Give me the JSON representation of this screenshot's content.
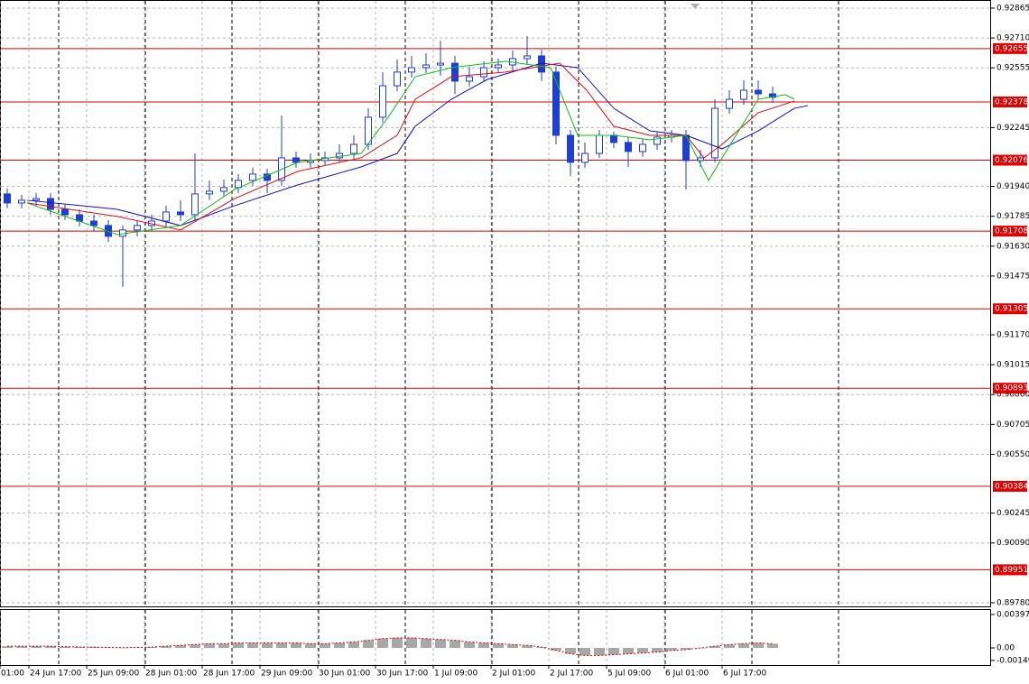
{
  "chart_data": {
    "type": "candlestick",
    "xlim": [
      0,
      274.5
    ],
    "xticks": [
      {
        "value": 0,
        "label": "01:00"
      },
      {
        "value": 8,
        "label": "24 Jun 17:00"
      },
      {
        "value": 24,
        "label": "25 Jun 09:00"
      },
      {
        "value": 40,
        "label": "28 Jun 01:00"
      },
      {
        "value": 56,
        "label": "28 Jun 17:00"
      },
      {
        "value": 72,
        "label": "29 Jun 09:00"
      },
      {
        "value": 88,
        "label": "30 Jun 01:00"
      },
      {
        "value": 104,
        "label": "30 Jun 17:00"
      },
      {
        "value": 120,
        "label": "1 Jul 09:00"
      },
      {
        "value": 136,
        "label": "2 Jul 01:00"
      },
      {
        "value": 152,
        "label": "2 Jul 17:00"
      },
      {
        "value": 168,
        "label": "5 Jul 09:00"
      },
      {
        "value": 184,
        "label": "6 Jul 01:00"
      },
      {
        "value": 200,
        "label": "6 Jul 17:00"
      }
    ],
    "ylim": [
      0.89761,
      0.92907
    ],
    "yticks": [
      0.92865,
      {
        "value": 0.9271,
        "label": "0.92710"
      },
      0.92555,
      0.92245,
      {
        "value": 0.9194,
        "label": "0.91940"
      },
      0.91785,
      {
        "value": 0.9163,
        "label": "0.91630"
      },
      0.91475,
      {
        "value": 0.9117,
        "label": "0.91170"
      },
      0.91015,
      {
        "value": 0.9086,
        "label": "0.90860"
      },
      0.90705,
      {
        "value": 0.9055,
        "label": "0.90550"
      },
      0.90245,
      {
        "value": 0.9009,
        "label": "0.90090"
      },
      {
        "value": 0.8978,
        "label": "0.89780"
      }
    ],
    "grid": true,
    "color": "#1f3fd0",
    "x": [
      2,
      6,
      10,
      14,
      18,
      22,
      26,
      30,
      34,
      38,
      42,
      46,
      50,
      54,
      58,
      62,
      66,
      70,
      74,
      78,
      82,
      86,
      90,
      94,
      98,
      102,
      106,
      110,
      114,
      118,
      122,
      126,
      130,
      134,
      138,
      142,
      146,
      150,
      154,
      158,
      162,
      166,
      170,
      174,
      178,
      182,
      186,
      190,
      194,
      198,
      202,
      206,
      210,
      214
    ],
    "open": [
      0.91901,
      0.91854,
      0.91868,
      0.91877,
      0.91821,
      0.91793,
      0.9176,
      0.91737,
      0.91681,
      0.91714,
      0.91737,
      0.9176,
      0.91807,
      0.91793,
      0.91901,
      0.91915,
      0.91934,
      0.91971,
      0.92004,
      0.91971,
      0.92088,
      0.92065,
      0.92074,
      0.92088,
      0.92111,
      0.92158,
      0.92299,
      0.92462,
      0.92533,
      0.92556,
      0.9257,
      0.92579,
      0.92486,
      0.92509,
      0.92556,
      0.9257,
      0.92603,
      0.92617,
      0.92533,
      0.92205,
      0.92065,
      0.92111,
      0.92205,
      0.92168,
      0.92121,
      0.92158,
      0.92196,
      0.92205,
      0.92074,
      0.92088,
      0.92345,
      0.92392,
      0.92439,
      0.9242
    ],
    "high": [
      0.91929,
      0.91896,
      0.91905,
      0.91905,
      0.91849,
      0.91821,
      0.91793,
      0.91765,
      0.91737,
      0.91765,
      0.91793,
      0.9184,
      0.91868,
      0.92111,
      0.91971,
      0.91976,
      0.92004,
      0.92037,
      0.92032,
      0.92308,
      0.92121,
      0.92111,
      0.92121,
      0.92158,
      0.92205,
      0.92345,
      0.92533,
      0.92598,
      0.92617,
      0.92631,
      0.92696,
      0.92617,
      0.92561,
      0.92589,
      0.92603,
      0.92645,
      0.9272,
      0.9265,
      0.92561,
      0.92233,
      0.92168,
      0.92233,
      0.92224,
      0.92196,
      0.92186,
      0.92224,
      0.92233,
      0.92233,
      0.9213,
      0.92392,
      0.92439,
      0.9249,
      0.9249,
      0.92458
    ],
    "low": [
      0.91826,
      0.91826,
      0.9184,
      0.91793,
      0.91765,
      0.91732,
      0.91709,
      0.91653,
      0.91419,
      0.91681,
      0.91709,
      0.91732,
      0.9176,
      0.91765,
      0.91868,
      0.91887,
      0.91905,
      0.91943,
      0.91905,
      0.91943,
      0.92037,
      0.92037,
      0.92046,
      0.92065,
      0.92083,
      0.9213,
      0.92271,
      0.92434,
      0.92505,
      0.92528,
      0.92514,
      0.9242,
      0.92458,
      0.92486,
      0.92533,
      0.92542,
      0.9257,
      0.92486,
      0.92158,
      0.91994,
      0.92037,
      0.92088,
      0.92139,
      0.92041,
      0.92093,
      0.9213,
      0.92168,
      0.91924,
      0.92041,
      0.92065,
      0.92317,
      0.92364,
      0.92392,
      0.92373
    ],
    "close": [
      0.91854,
      0.91868,
      0.91877,
      0.91821,
      0.91793,
      0.9176,
      0.91737,
      0.91681,
      0.91714,
      0.91737,
      0.9176,
      0.91807,
      0.91793,
      0.91901,
      0.91915,
      0.91934,
      0.91971,
      0.92004,
      0.91971,
      0.92088,
      0.92065,
      0.92074,
      0.92088,
      0.92111,
      0.92158,
      0.92299,
      0.92462,
      0.92533,
      0.92556,
      0.9257,
      0.92579,
      0.92486,
      0.92509,
      0.92556,
      0.9257,
      0.92603,
      0.92617,
      0.92533,
      0.92205,
      0.92065,
      0.92111,
      0.92205,
      0.92168,
      0.92121,
      0.92158,
      0.92196,
      0.92205,
      0.92074,
      0.92088,
      0.92345,
      0.92392,
      0.92439,
      0.9242,
      0.92402
    ],
    "lines": [
      {
        "color": "#1010d0",
        "x": [
          7.5,
          22.5,
          32.5,
          50,
          65,
          82.5,
          100,
          110,
          115,
          125,
          135,
          150,
          160,
          170,
          180,
          190,
          200,
          210,
          220,
          223.75
        ],
        "values": [
          0.91868,
          0.9184,
          0.91821,
          0.91737,
          0.9184,
          0.91948,
          0.92041,
          0.92111,
          0.92252,
          0.92392,
          0.92495,
          0.92579,
          0.92556,
          0.92345,
          0.92228,
          0.92205,
          0.92135,
          0.92228,
          0.92345,
          0.92359
        ]
      },
      {
        "color": "#e01010",
        "x": [
          7.5,
          32.5,
          50,
          65,
          82.5,
          100,
          110,
          115,
          125,
          140,
          155,
          162.5,
          170,
          180,
          190,
          195,
          200,
          210,
          220
        ],
        "values": [
          0.91854,
          0.91784,
          0.91714,
          0.91877,
          0.92018,
          0.92088,
          0.92205,
          0.92392,
          0.92509,
          0.92533,
          0.92579,
          0.92439,
          0.92252,
          0.92205,
          0.92205,
          0.92088,
          0.92158,
          0.92322,
          0.92383
        ]
      },
      {
        "color": "#10c010",
        "x": [
          7.5,
          32.5,
          50,
          65,
          82.5,
          100,
          107.5,
          115,
          125,
          140,
          152.5,
          160,
          170,
          180,
          190,
          196.25,
          200,
          210,
          217.5,
          220
        ],
        "values": [
          0.91854,
          0.9169,
          0.91737,
          0.91924,
          0.92065,
          0.92111,
          0.92299,
          0.92509,
          0.92556,
          0.92589,
          0.92556,
          0.92205,
          0.92205,
          0.92182,
          0.92205,
          0.91971,
          0.92088,
          0.92392,
          0.92416,
          0.92392
        ]
      }
    ],
    "levels": {
      "color": "#e00000",
      "values": [
        0.92655,
        0.92378,
        0.92076,
        0.91708,
        0.91305,
        0.90893,
        0.90384,
        0.89951
      ]
    },
    "oscillator": {
      "ylim": [
        -0.00204,
        0.00462
      ],
      "yticks": [
        0.003974,
        {
          "value": 0,
          "label": "0.00"
        },
        -0.00149
      ],
      "color": "#a8a8a8",
      "line_color": "#d00000",
      "values": [
        0.0002,
        0.0002,
        0.0002,
        0.0002,
        0.00015,
        0.0001,
        0.0001,
        5e-05,
        3e-05,
        5e-05,
        0.0001,
        0.0002,
        0.0003,
        0.0004,
        0.0005,
        0.0005,
        0.0006,
        0.0006,
        0.0006,
        0.0006,
        0.0006,
        0.0005,
        0.0005,
        0.0006,
        0.0007,
        0.0009,
        0.0011,
        0.0012,
        0.0012,
        0.0011,
        0.001,
        0.0009,
        0.0007,
        0.0006,
        0.0005,
        0.0004,
        0.0003,
        0.0001,
        -0.0003,
        -0.0007,
        -0.0009,
        -0.0009,
        -0.0008,
        -0.0007,
        -0.0006,
        -0.0005,
        -0.0003,
        -0.0002,
        0,
        0.0002,
        0.0004,
        0.0005,
        0.0006,
        0.0005
      ]
    }
  }
}
